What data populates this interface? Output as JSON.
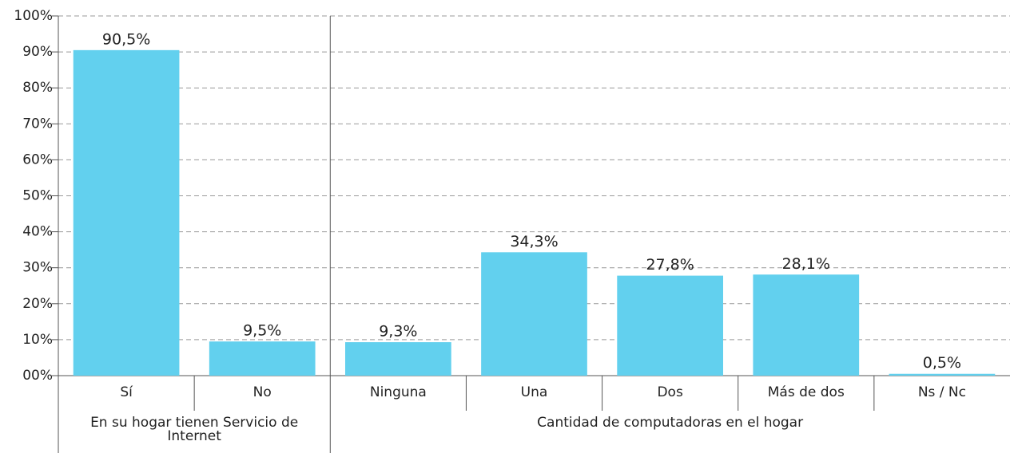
{
  "chart_data": {
    "type": "bar",
    "color": "#62d0ee",
    "grid": true,
    "ylim": [
      0,
      100
    ],
    "yticks": [
      {
        "value": 0,
        "label": "00%"
      },
      {
        "value": 10,
        "label": "10%"
      },
      {
        "value": 20,
        "label": "20%"
      },
      {
        "value": 30,
        "label": "30%"
      },
      {
        "value": 40,
        "label": "40%"
      },
      {
        "value": 50,
        "label": "50%"
      },
      {
        "value": 60,
        "label": "60%"
      },
      {
        "value": 70,
        "label": "70%"
      },
      {
        "value": 80,
        "label": "80%"
      },
      {
        "value": 90,
        "label": "90%"
      },
      {
        "value": 100,
        "label": "100%"
      }
    ],
    "groups": [
      {
        "name": "En su hogar tienen Servicio de Internet",
        "categories": [
          "Sí",
          "No"
        ],
        "values": [
          90.5,
          9.5
        ],
        "value_labels": [
          "90,5%",
          "9,5%"
        ]
      },
      {
        "name": "Cantidad de computadoras en el hogar",
        "categories": [
          "Ninguna",
          "Una",
          "Dos",
          "Más de dos",
          "Ns / Nc"
        ],
        "values": [
          9.3,
          34.3,
          27.8,
          28.1,
          0.5
        ],
        "value_labels": [
          "9,3%",
          "34,3%",
          "27,8%",
          "28,1%",
          "0,5%"
        ]
      }
    ]
  }
}
